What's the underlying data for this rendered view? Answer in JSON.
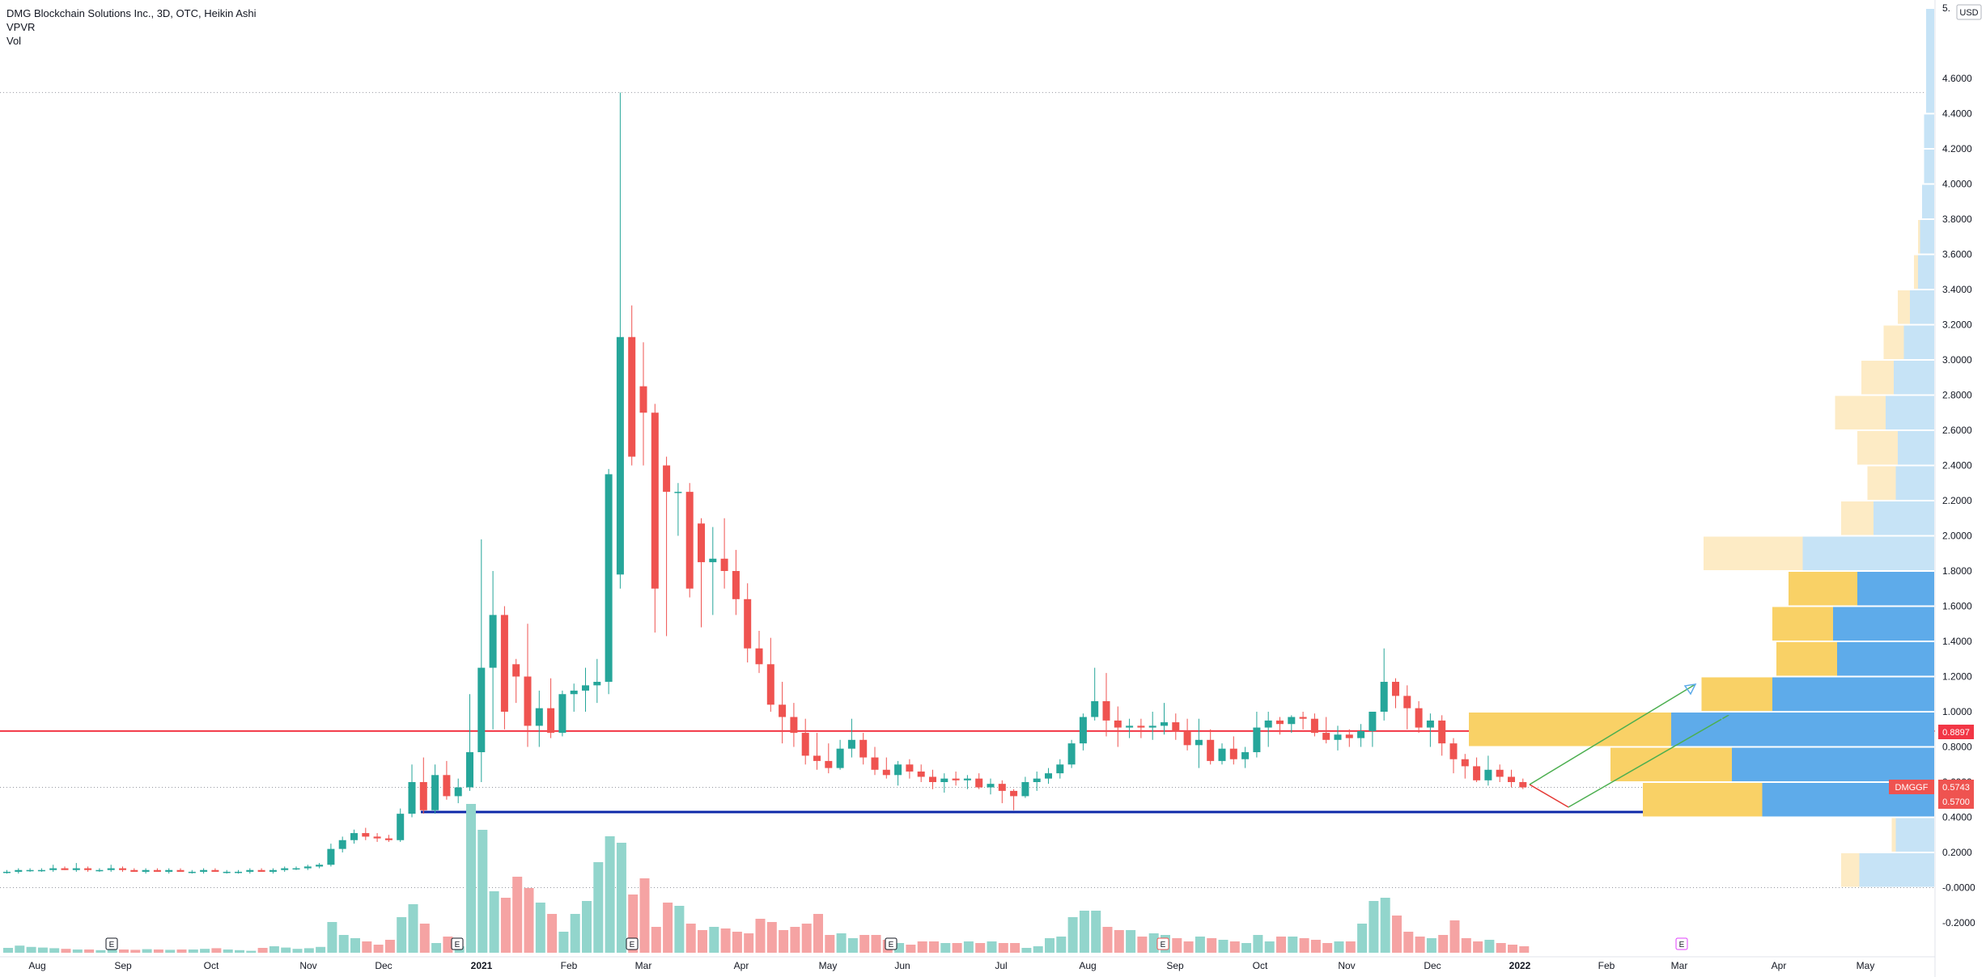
{
  "legend": {
    "title": "DMG Blockchain Solutions Inc., 3D, OTC, Heikin Ashi",
    "indicator1": "VPVR",
    "indicator2": "Vol"
  },
  "currency": "USD",
  "price_labels": {
    "ticker": "DMGGF",
    "last": "0.5743",
    "close": "0.5700",
    "red_line": "0.8897"
  },
  "colors": {
    "up": "#26a69a",
    "down": "#ef5350",
    "vol_up": "#92d5cc",
    "vol_down": "#f5a3a3",
    "vp_up": "#5eabea",
    "vp_down": "#f9d166",
    "vp_up_va": "#c6e3f6",
    "vp_down_va": "#fdebc5",
    "red_line": "#f23645",
    "blue_line": "#0d28a8",
    "green_arrow": "#4caf50"
  },
  "chart_data": {
    "type": "candlestick",
    "style": "Heikin Ashi",
    "ylim": [
      -0.3,
      5.0
    ],
    "y_ticks": [
      "5.",
      "4.6000",
      "4.4000",
      "4.2000",
      "4.0000",
      "3.8000",
      "3.6000",
      "3.4000",
      "3.2000",
      "3.0000",
      "2.8000",
      "2.6000",
      "2.4000",
      "2.2000",
      "2.0000",
      "1.8000",
      "1.6000",
      "1.4000",
      "1.2000",
      "1.0000",
      "0.8000",
      "0.6000",
      "0.4000",
      "0.2000",
      "-0.0000",
      "-0.2000"
    ],
    "x_ticks": [
      "Aug",
      "Sep",
      "Oct",
      "Nov",
      "Dec",
      "2021",
      "Feb",
      "Mar",
      "Apr",
      "May",
      "Jun",
      "Jul",
      "Aug",
      "Sep",
      "Oct",
      "Nov",
      "Dec",
      "2022",
      "Feb",
      "Mar",
      "Apr",
      "May"
    ],
    "earnings_markers": [
      "E",
      "E",
      "E",
      "E",
      "E",
      "E"
    ],
    "horizontal_lines": [
      {
        "name": "resistance",
        "value": 0.89,
        "color": "red"
      },
      {
        "name": "support",
        "value": 0.43,
        "color": "blue"
      },
      {
        "name": "top-dotted",
        "value": 4.52
      },
      {
        "name": "last-dotted",
        "value": 0.57
      },
      {
        "name": "zero-dotted",
        "value": 0.0
      }
    ],
    "candles": [
      [
        0.09,
        0.1,
        0.08,
        0.09
      ],
      [
        0.09,
        0.11,
        0.08,
        0.1
      ],
      [
        0.1,
        0.11,
        0.09,
        0.1
      ],
      [
        0.1,
        0.11,
        0.09,
        0.1
      ],
      [
        0.1,
        0.13,
        0.09,
        0.11
      ],
      [
        0.11,
        0.12,
        0.1,
        0.1
      ],
      [
        0.1,
        0.14,
        0.09,
        0.11
      ],
      [
        0.11,
        0.12,
        0.09,
        0.1
      ],
      [
        0.1,
        0.11,
        0.09,
        0.1
      ],
      [
        0.1,
        0.13,
        0.09,
        0.11
      ],
      [
        0.11,
        0.12,
        0.09,
        0.1
      ],
      [
        0.1,
        0.11,
        0.09,
        0.09
      ],
      [
        0.09,
        0.11,
        0.08,
        0.1
      ],
      [
        0.1,
        0.11,
        0.09,
        0.09
      ],
      [
        0.09,
        0.11,
        0.08,
        0.1
      ],
      [
        0.1,
        0.11,
        0.09,
        0.09
      ],
      [
        0.09,
        0.1,
        0.08,
        0.09
      ],
      [
        0.09,
        0.11,
        0.08,
        0.1
      ],
      [
        0.1,
        0.11,
        0.09,
        0.09
      ],
      [
        0.09,
        0.1,
        0.08,
        0.09
      ],
      [
        0.09,
        0.1,
        0.08,
        0.09
      ],
      [
        0.09,
        0.11,
        0.08,
        0.1
      ],
      [
        0.1,
        0.11,
        0.09,
        0.09
      ],
      [
        0.09,
        0.11,
        0.08,
        0.1
      ],
      [
        0.1,
        0.12,
        0.09,
        0.11
      ],
      [
        0.11,
        0.12,
        0.1,
        0.11
      ],
      [
        0.11,
        0.13,
        0.1,
        0.12
      ],
      [
        0.12,
        0.14,
        0.11,
        0.13
      ],
      [
        0.13,
        0.25,
        0.12,
        0.22
      ],
      [
        0.22,
        0.29,
        0.2,
        0.27
      ],
      [
        0.27,
        0.33,
        0.25,
        0.31
      ],
      [
        0.31,
        0.34,
        0.27,
        0.29
      ],
      [
        0.29,
        0.31,
        0.26,
        0.28
      ],
      [
        0.28,
        0.3,
        0.26,
        0.27
      ],
      [
        0.27,
        0.45,
        0.26,
        0.42
      ],
      [
        0.42,
        0.7,
        0.4,
        0.6
      ],
      [
        0.6,
        0.74,
        0.42,
        0.44
      ],
      [
        0.44,
        0.7,
        0.42,
        0.64
      ],
      [
        0.64,
        0.72,
        0.5,
        0.52
      ],
      [
        0.52,
        0.62,
        0.48,
        0.57
      ],
      [
        0.57,
        1.1,
        0.55,
        0.77
      ],
      [
        0.77,
        1.98,
        0.6,
        1.25
      ],
      [
        1.25,
        1.8,
        0.9,
        1.55
      ],
      [
        1.55,
        1.6,
        0.9,
        1.0
      ],
      [
        1.27,
        1.3,
        1.05,
        1.2
      ],
      [
        1.2,
        1.5,
        0.8,
        0.92
      ],
      [
        0.92,
        1.12,
        0.8,
        1.02
      ],
      [
        1.02,
        1.19,
        0.85,
        0.88
      ],
      [
        0.88,
        1.12,
        0.86,
        1.1
      ],
      [
        1.1,
        1.16,
        1.0,
        1.12
      ],
      [
        1.12,
        1.25,
        1.0,
        1.15
      ],
      [
        1.15,
        1.3,
        1.05,
        1.17
      ],
      [
        1.17,
        2.38,
        1.1,
        2.35
      ],
      [
        1.78,
        4.52,
        1.7,
        3.13
      ],
      [
        3.13,
        3.31,
        2.4,
        2.45
      ],
      [
        2.85,
        3.1,
        2.4,
        2.7
      ],
      [
        2.7,
        2.75,
        1.45,
        1.7
      ],
      [
        2.4,
        2.45,
        1.43,
        2.25
      ],
      [
        2.25,
        2.3,
        2.0,
        2.25
      ],
      [
        2.25,
        2.3,
        1.65,
        1.7
      ],
      [
        2.07,
        2.1,
        1.48,
        1.85
      ],
      [
        1.85,
        2.05,
        1.55,
        1.87
      ],
      [
        1.87,
        2.1,
        1.7,
        1.8
      ],
      [
        1.8,
        1.92,
        1.55,
        1.64
      ],
      [
        1.64,
        1.73,
        1.28,
        1.36
      ],
      [
        1.36,
        1.46,
        1.22,
        1.27
      ],
      [
        1.27,
        1.42,
        1.0,
        1.04
      ],
      [
        1.04,
        1.17,
        0.82,
        0.97
      ],
      [
        0.97,
        1.05,
        0.8,
        0.88
      ],
      [
        0.88,
        0.96,
        0.7,
        0.75
      ],
      [
        0.75,
        0.88,
        0.67,
        0.72
      ],
      [
        0.72,
        0.82,
        0.65,
        0.68
      ],
      [
        0.68,
        0.84,
        0.67,
        0.79
      ],
      [
        0.79,
        0.96,
        0.74,
        0.84
      ],
      [
        0.84,
        0.88,
        0.7,
        0.74
      ],
      [
        0.74,
        0.8,
        0.64,
        0.67
      ],
      [
        0.67,
        0.74,
        0.62,
        0.64
      ],
      [
        0.64,
        0.72,
        0.58,
        0.7
      ],
      [
        0.7,
        0.73,
        0.62,
        0.66
      ],
      [
        0.66,
        0.7,
        0.6,
        0.63
      ],
      [
        0.63,
        0.67,
        0.56,
        0.6
      ],
      [
        0.6,
        0.65,
        0.54,
        0.62
      ],
      [
        0.62,
        0.66,
        0.58,
        0.61
      ],
      [
        0.61,
        0.64,
        0.56,
        0.62
      ],
      [
        0.62,
        0.65,
        0.56,
        0.57
      ],
      [
        0.57,
        0.62,
        0.53,
        0.59
      ],
      [
        0.59,
        0.61,
        0.48,
        0.55
      ],
      [
        0.55,
        0.56,
        0.44,
        0.52
      ],
      [
        0.52,
        0.63,
        0.51,
        0.6
      ],
      [
        0.6,
        0.66,
        0.55,
        0.62
      ],
      [
        0.62,
        0.68,
        0.59,
        0.65
      ],
      [
        0.65,
        0.73,
        0.62,
        0.7
      ],
      [
        0.7,
        0.84,
        0.68,
        0.82
      ],
      [
        0.82,
        0.99,
        0.78,
        0.97
      ],
      [
        0.97,
        1.25,
        0.95,
        1.06
      ],
      [
        1.06,
        1.22,
        0.86,
        0.95
      ],
      [
        0.95,
        1.03,
        0.8,
        0.91
      ],
      [
        0.91,
        0.96,
        0.85,
        0.92
      ],
      [
        0.92,
        0.96,
        0.85,
        0.91
      ],
      [
        0.91,
        1.0,
        0.84,
        0.92
      ],
      [
        0.92,
        1.05,
        0.87,
        0.94
      ],
      [
        0.94,
        0.99,
        0.84,
        0.89
      ],
      [
        0.89,
        0.96,
        0.78,
        0.81
      ],
      [
        0.81,
        0.96,
        0.68,
        0.84
      ],
      [
        0.84,
        0.9,
        0.7,
        0.72
      ],
      [
        0.72,
        0.82,
        0.7,
        0.79
      ],
      [
        0.79,
        0.86,
        0.7,
        0.73
      ],
      [
        0.73,
        0.8,
        0.68,
        0.77
      ],
      [
        0.77,
        1.0,
        0.74,
        0.91
      ],
      [
        0.91,
        1.0,
        0.8,
        0.95
      ],
      [
        0.95,
        0.97,
        0.87,
        0.93
      ],
      [
        0.93,
        0.98,
        0.88,
        0.97
      ],
      [
        0.97,
        1.0,
        0.9,
        0.96
      ],
      [
        0.96,
        0.99,
        0.86,
        0.88
      ],
      [
        0.88,
        0.97,
        0.82,
        0.84
      ],
      [
        0.84,
        0.92,
        0.78,
        0.87
      ],
      [
        0.87,
        0.9,
        0.8,
        0.85
      ],
      [
        0.85,
        0.93,
        0.8,
        0.89
      ],
      [
        0.89,
        0.95,
        0.8,
        1.0
      ],
      [
        1.0,
        1.36,
        0.95,
        1.17
      ],
      [
        1.17,
        1.19,
        1.02,
        1.09
      ],
      [
        1.09,
        1.15,
        0.9,
        1.02
      ],
      [
        1.02,
        1.06,
        0.88,
        0.91
      ],
      [
        0.91,
        0.99,
        0.8,
        0.95
      ],
      [
        0.95,
        0.98,
        0.75,
        0.82
      ],
      [
        0.82,
        0.85,
        0.65,
        0.73
      ],
      [
        0.73,
        0.76,
        0.62,
        0.69
      ],
      [
        0.69,
        0.74,
        0.6,
        0.61
      ],
      [
        0.61,
        0.75,
        0.58,
        0.67
      ],
      [
        0.67,
        0.7,
        0.6,
        0.63
      ],
      [
        0.63,
        0.67,
        0.57,
        0.6
      ],
      [
        0.6,
        0.62,
        0.56,
        0.57
      ]
    ],
    "volume": [
      0.15,
      0.22,
      0.18,
      0.16,
      0.14,
      0.12,
      0.1,
      0.1,
      0.08,
      0.12,
      0.1,
      0.09,
      0.11,
      0.1,
      0.09,
      0.1,
      0.1,
      0.12,
      0.14,
      0.1,
      0.08,
      0.06,
      0.15,
      0.2,
      0.16,
      0.12,
      0.14,
      0.18,
      0.95,
      0.55,
      0.45,
      0.35,
      0.25,
      0.4,
      1.1,
      1.5,
      0.9,
      0.3,
      0.5,
      0.2,
      4.6,
      3.8,
      1.9,
      1.7,
      2.35,
      2.0,
      1.55,
      1.2,
      0.65,
      1.2,
      1.6,
      2.8,
      3.6,
      3.4,
      1.8,
      2.3,
      0.8,
      1.55,
      1.45,
      0.9,
      0.7,
      0.8,
      0.75,
      0.65,
      0.6,
      1.05,
      0.95,
      0.7,
      0.8,
      0.9,
      1.2,
      0.55,
      0.6,
      0.45,
      0.55,
      0.55,
      0.4,
      0.3,
      0.25,
      0.35,
      0.35,
      0.3,
      0.3,
      0.35,
      0.3,
      0.35,
      0.3,
      0.3,
      0.15,
      0.2,
      0.45,
      0.5,
      1.1,
      1.3,
      1.3,
      0.8,
      0.7,
      0.7,
      0.5,
      0.6,
      0.55,
      0.45,
      0.35,
      0.5,
      0.45,
      0.4,
      0.35,
      0.3,
      0.55,
      0.35,
      0.5,
      0.5,
      0.45,
      0.4,
      0.3,
      0.35,
      0.35,
      0.9,
      1.6,
      1.7,
      1.15,
      0.65,
      0.5,
      0.45,
      0.55,
      1.0,
      0.45,
      0.35,
      0.4,
      0.3,
      0.25,
      0.2
    ],
    "volume_profile": [
      {
        "low": 4.4,
        "high": 5.0,
        "up": 0.04,
        "down": 0.0,
        "va": false
      },
      {
        "low": 4.2,
        "high": 4.4,
        "up": 0.05,
        "down": 0.0,
        "va": false
      },
      {
        "low": 4.0,
        "high": 4.2,
        "up": 0.05,
        "down": 0.0,
        "va": false
      },
      {
        "low": 3.8,
        "high": 4.0,
        "up": 0.06,
        "down": 0.0,
        "va": false
      },
      {
        "low": 3.6,
        "high": 3.8,
        "up": 0.07,
        "down": 0.01,
        "va": false
      },
      {
        "low": 3.4,
        "high": 3.6,
        "up": 0.08,
        "down": 0.02,
        "va": false
      },
      {
        "low": 3.2,
        "high": 3.4,
        "up": 0.12,
        "down": 0.06,
        "va": false
      },
      {
        "low": 3.0,
        "high": 3.2,
        "up": 0.15,
        "down": 0.1,
        "va": false
      },
      {
        "low": 2.8,
        "high": 3.0,
        "up": 0.2,
        "down": 0.16,
        "va": false
      },
      {
        "low": 2.6,
        "high": 2.8,
        "up": 0.24,
        "down": 0.25,
        "va": false
      },
      {
        "low": 2.4,
        "high": 2.6,
        "up": 0.18,
        "down": 0.2,
        "va": false
      },
      {
        "low": 2.2,
        "high": 2.4,
        "up": 0.19,
        "down": 0.14,
        "va": false
      },
      {
        "low": 2.0,
        "high": 2.2,
        "up": 0.3,
        "down": 0.16,
        "va": false
      },
      {
        "low": 1.8,
        "high": 2.0,
        "up": 0.65,
        "down": 0.49,
        "va": false
      },
      {
        "low": 1.6,
        "high": 1.8,
        "up": 0.38,
        "down": 0.34,
        "va": true
      },
      {
        "low": 1.4,
        "high": 1.6,
        "up": 0.5,
        "down": 0.3,
        "va": true
      },
      {
        "low": 1.2,
        "high": 1.4,
        "up": 0.48,
        "down": 0.3,
        "va": true
      },
      {
        "low": 1.0,
        "high": 1.2,
        "up": 0.8,
        "down": 0.35,
        "va": true
      },
      {
        "low": 0.8,
        "high": 1.0,
        "up": 1.3,
        "down": 1.0,
        "va": true
      },
      {
        "low": 0.6,
        "high": 0.8,
        "up": 1.0,
        "down": 0.6,
        "va": true
      },
      {
        "low": 0.4,
        "high": 0.6,
        "up": 0.85,
        "down": 0.59,
        "va": true
      },
      {
        "low": 0.2,
        "high": 0.4,
        "up": 0.19,
        "down": 0.02,
        "va": false
      },
      {
        "low": 0.0,
        "high": 0.2,
        "up": 0.37,
        "down": 0.09,
        "va": false
      }
    ]
  }
}
